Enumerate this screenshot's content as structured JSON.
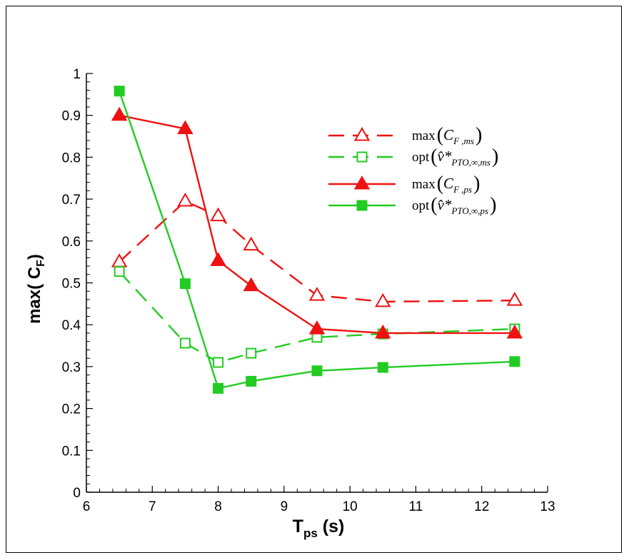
{
  "chart_data": {
    "type": "line",
    "xlabel": {
      "main": "T",
      "sub": "ps",
      "tail": " (s)"
    },
    "ylabel": {
      "main": "max( C",
      "sub": "F",
      "tail": ")"
    },
    "xlim": [
      6,
      13
    ],
    "ylim": [
      0,
      1
    ],
    "xticks": [
      6,
      7,
      8,
      9,
      10,
      11,
      12,
      13
    ],
    "yticks": [
      0,
      0.1,
      0.2,
      0.3,
      0.4,
      0.5,
      0.6,
      0.7,
      0.8,
      0.9,
      1
    ],
    "ytick_labels": [
      "0",
      "0.1",
      "0.2",
      "0.3",
      "0.4",
      "0.5",
      "0.6",
      "0.7",
      "0.8",
      "0.9",
      "1"
    ],
    "grid": false,
    "legend_position": "top-right",
    "series": [
      {
        "legend_prefix": "max",
        "legend_symbol": "C",
        "legend_subscript": "F ,ms",
        "color": "#ee1111",
        "line_style": "dashed",
        "marker": "triangle-open",
        "x": [
          6.5,
          7.5,
          8.0,
          8.5,
          9.5,
          10.5,
          12.5
        ],
        "y": [
          0.55,
          0.695,
          0.66,
          0.59,
          0.47,
          0.455,
          0.458
        ]
      },
      {
        "legend_prefix": "opt",
        "legend_symbol": "v̂*",
        "legend_subscript": "PTO,∞,ms",
        "color": "#22cc22",
        "line_style": "dashed",
        "marker": "square-open",
        "x": [
          6.5,
          7.5,
          8.0,
          8.5,
          9.5,
          10.5,
          12.5
        ],
        "y": [
          0.527,
          0.356,
          0.31,
          0.332,
          0.37,
          0.378,
          0.39
        ]
      },
      {
        "legend_prefix": "max",
        "legend_symbol": "C",
        "legend_subscript": "F ,ps",
        "color": "#ee1111",
        "line_style": "solid",
        "marker": "triangle-filled",
        "x": [
          6.5,
          7.5,
          8.0,
          8.5,
          9.5,
          10.5,
          12.5
        ],
        "y": [
          0.9,
          0.868,
          0.553,
          0.493,
          0.39,
          0.38,
          0.38
        ]
      },
      {
        "legend_prefix": "opt",
        "legend_symbol": "v̂*",
        "legend_subscript": "PTO,∞,ps",
        "color": "#22cc22",
        "line_style": "solid",
        "marker": "square-filled",
        "x": [
          6.5,
          7.5,
          8.0,
          8.5,
          9.5,
          10.5,
          12.5
        ],
        "y": [
          0.958,
          0.498,
          0.248,
          0.265,
          0.29,
          0.298,
          0.312
        ]
      }
    ]
  }
}
